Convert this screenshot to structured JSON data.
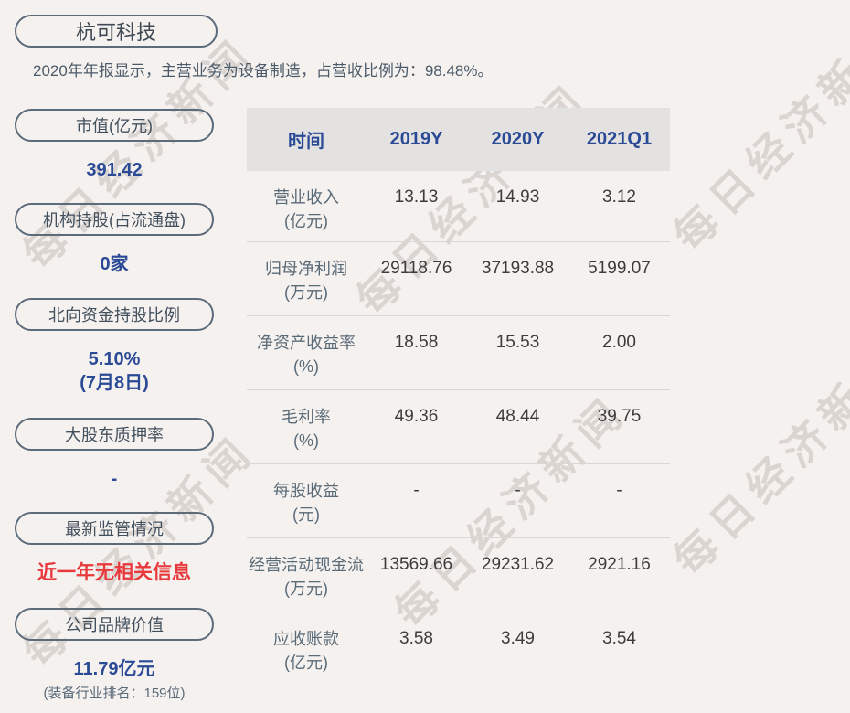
{
  "colors": {
    "page_bg": "#f5f1ef",
    "accent_navy": "#2b4a96",
    "alert_red": "#e8393d",
    "pill_border": "#5c6b7a",
    "table_header_bg": "#e3e2e1",
    "row_divider": "#dbd7d4",
    "watermark_gray": "#d5cfcb"
  },
  "watermark": {
    "text": "每日经济新闻"
  },
  "header": {
    "company": "杭可科技",
    "summary": "2020年年报显示，主营业务为设备制造，占营收比例为：98.48%。"
  },
  "sidebar": {
    "items": [
      {
        "label": "市值(亿元)",
        "value": "391.42"
      },
      {
        "label": "机构持股(占流通盘)",
        "value": "0家"
      },
      {
        "label": "北向资金持股比例",
        "value": "5.10%",
        "value2": "(7月8日)"
      },
      {
        "label": "大股东质押率",
        "value": "-"
      },
      {
        "label": "最新监管情况",
        "value": "近一年无相关信息"
      },
      {
        "label": "公司品牌价值",
        "value": "11.79亿元",
        "note": "(装备行业排名：159位)"
      }
    ]
  },
  "table": {
    "columns": [
      "时间",
      "2019Y",
      "2020Y",
      "2021Q1"
    ],
    "rows": [
      {
        "label": "营业收入",
        "unit": "(亿元)",
        "values": [
          "13.13",
          "14.93",
          "3.12"
        ]
      },
      {
        "label": "归母净利润",
        "unit": "(万元)",
        "values": [
          "29118.76",
          "37193.88",
          "5199.07"
        ]
      },
      {
        "label": "净资产收益率",
        "unit": "(%)",
        "values": [
          "18.58",
          "15.53",
          "2.00"
        ]
      },
      {
        "label": "毛利率",
        "unit": "(%)",
        "values": [
          "49.36",
          "48.44",
          "39.75"
        ]
      },
      {
        "label": "每股收益",
        "unit": "(元)",
        "values": [
          "-",
          "-",
          "-"
        ]
      },
      {
        "label": "经营活动现金流",
        "unit": "(万元)",
        "values": [
          "13569.66",
          "29231.62",
          "2921.16"
        ]
      },
      {
        "label": "应收账款",
        "unit": "(亿元)",
        "values": [
          "3.58",
          "3.49",
          "3.54"
        ]
      }
    ]
  },
  "chart_data": {
    "type": "table",
    "title": "杭可科技 财务数据",
    "columns": [
      "时间",
      "2019Y",
      "2020Y",
      "2021Q1"
    ],
    "rows": [
      {
        "metric": "营业收入(亿元)",
        "values": [
          13.13,
          14.93,
          3.12
        ]
      },
      {
        "metric": "归母净利润(万元)",
        "values": [
          29118.76,
          37193.88,
          5199.07
        ]
      },
      {
        "metric": "净资产收益率(%)",
        "values": [
          18.58,
          15.53,
          2.0
        ]
      },
      {
        "metric": "毛利率(%)",
        "values": [
          49.36,
          48.44,
          39.75
        ]
      },
      {
        "metric": "每股收益(元)",
        "values": [
          null,
          null,
          null
        ]
      },
      {
        "metric": "经营活动现金流(万元)",
        "values": [
          13569.66,
          29231.62,
          2921.16
        ]
      },
      {
        "metric": "应收账款(亿元)",
        "values": [
          3.58,
          3.49,
          3.54
        ]
      }
    ]
  }
}
